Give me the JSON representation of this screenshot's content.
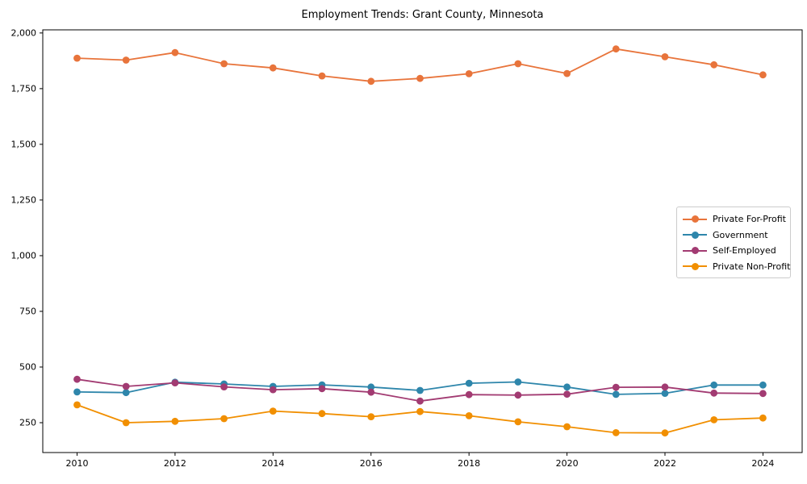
{
  "chart_data": {
    "type": "line",
    "title": "Employment Trends: Grant County, Minnesota",
    "xlabel": "",
    "ylabel": "",
    "grid": false,
    "legend_position": "center right",
    "xlim": [
      2009.3,
      2024.8
    ],
    "ylim": [
      116,
      2014
    ],
    "x_ticks": [
      2010,
      2012,
      2014,
      2016,
      2018,
      2020,
      2022,
      2024
    ],
    "x_tick_labels": [
      "2010",
      "2012",
      "2014",
      "2016",
      "2018",
      "2020",
      "2022",
      "2024"
    ],
    "y_ticks": [
      250,
      500,
      750,
      1000,
      1250,
      1500,
      1750,
      2000
    ],
    "y_tick_labels": [
      "250",
      "500",
      "750",
      "1,000",
      "1,250",
      "1,500",
      "1,750",
      "2,000"
    ],
    "x": [
      2010,
      2011,
      2012,
      2013,
      2014,
      2015,
      2016,
      2017,
      2018,
      2019,
      2020,
      2021,
      2022,
      2023,
      2024
    ],
    "series": [
      {
        "name": "Private For-Profit",
        "color": "#E8743B",
        "values": [
          1887,
          1878,
          1912,
          1862,
          1843,
          1807,
          1783,
          1796,
          1817,
          1862,
          1818,
          1928,
          1893,
          1857,
          1812
        ]
      },
      {
        "name": "Government",
        "color": "#2E86AB",
        "values": [
          388,
          385,
          432,
          424,
          413,
          420,
          410,
          395,
          427,
          433,
          410,
          377,
          382,
          419,
          419
        ]
      },
      {
        "name": "Self-Employed",
        "color": "#A23B72",
        "values": [
          445,
          413,
          429,
          411,
          398,
          403,
          387,
          347,
          376,
          374,
          378,
          409,
          410,
          383,
          381
        ]
      },
      {
        "name": "Private Non-Profit",
        "color": "#F18F01",
        "values": [
          330,
          250,
          256,
          268,
          302,
          291,
          277,
          300,
          281,
          254,
          232,
          205,
          204,
          263,
          271
        ]
      }
    ]
  }
}
